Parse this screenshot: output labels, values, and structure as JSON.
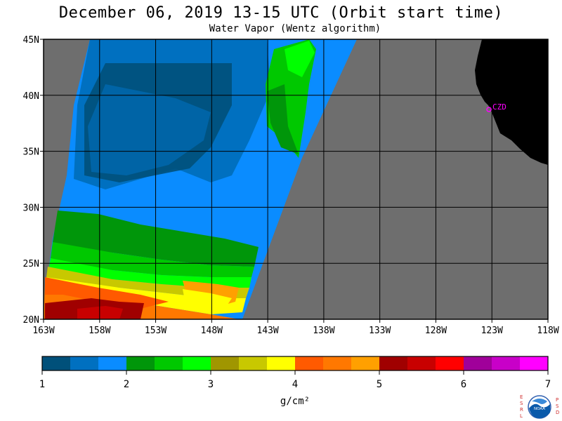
{
  "title": "December 06, 2019  13-15 UTC  (Orbit start time)",
  "subtitle": "Water Vapor (Wentz algorithm)",
  "map": {
    "lat_ticks": [
      "45N",
      "40N",
      "35N",
      "30N",
      "25N",
      "20N"
    ],
    "lon_ticks": [
      "163W",
      "158W",
      "153W",
      "148W",
      "143W",
      "138W",
      "133W",
      "128W",
      "123W",
      "118W"
    ],
    "station_label": "CZD",
    "colors": {
      "land": "#000000",
      "no_data": "#6e6e6e",
      "grid": "#000000",
      "station": "#ff00ff"
    }
  },
  "colorbar": {
    "tick_labels": [
      "1",
      "2",
      "3",
      "4",
      "5",
      "6",
      "7"
    ],
    "unit_label": "g/cm²",
    "colors": [
      "#00507a",
      "#0070c0",
      "#0a8cff",
      "#00960a",
      "#00c800",
      "#00ff00",
      "#a09600",
      "#c8c800",
      "#ffff00",
      "#ff5a00",
      "#ff7800",
      "#ffa000",
      "#a00000",
      "#c80000",
      "#ff0000",
      "#a0009a",
      "#c800c8",
      "#ff00ff"
    ]
  },
  "logo": {
    "left_letters": [
      "E",
      "S",
      "R",
      "L"
    ],
    "right_letters": [
      "P",
      "S",
      "D"
    ],
    "center_text": "NOAA"
  }
}
